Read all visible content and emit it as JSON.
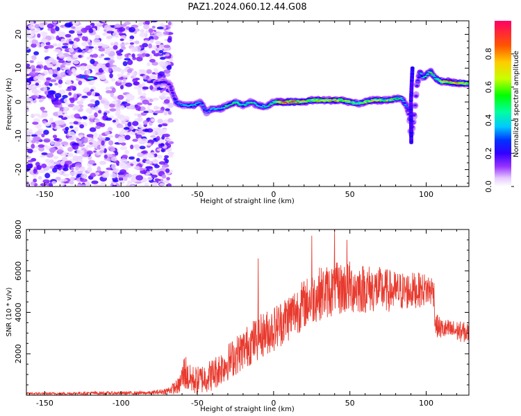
{
  "chart_data": [
    {
      "type": "heatmap",
      "title": "PAZ1.2024.060.12.44.G08",
      "xlabel": "Height of straight line (km)",
      "ylabel": "Frequency (Hz)",
      "xlim": [
        -162,
        128
      ],
      "ylim": [
        -25,
        24
      ],
      "x_ticks": [
        -150,
        -100,
        -50,
        0,
        50,
        100
      ],
      "y_ticks": [
        -20,
        -10,
        0,
        10,
        20
      ],
      "colorbar": {
        "label": "Normalized spectral amplitude",
        "range": [
          0,
          1
        ],
        "ticks": [
          "0.0",
          "0.2",
          "0.4",
          "0.6",
          "0.8"
        ],
        "colormap": [
          "#ffffff",
          "#e6ccff",
          "#9933ff",
          "#5500ff",
          "#0000ff",
          "#00c8ff",
          "#00ffa0",
          "#00ff00",
          "#c8ff00",
          "#ffcc00",
          "#ff5500",
          "#ff0066"
        ]
      },
      "ridge": {
        "x": [
          -77,
          -72,
          -68,
          -64,
          -60,
          -56,
          -52,
          -48,
          -44,
          -40,
          -35,
          -30,
          -25,
          -20,
          -15,
          -10,
          -5,
          0,
          5,
          10,
          15,
          20,
          25,
          30,
          35,
          40,
          45,
          50,
          55,
          60,
          65,
          70,
          75,
          80,
          84,
          87,
          89,
          90,
          92,
          94,
          96,
          98,
          100,
          103,
          106,
          110,
          115,
          120,
          125,
          128
        ],
        "freq": [
          5.5,
          6,
          5,
          0,
          -1,
          -1,
          -1,
          0,
          -3,
          -2,
          -2,
          -1,
          0,
          -1,
          0,
          -1,
          -1.5,
          0,
          0,
          0,
          0,
          0,
          0.5,
          0.5,
          0.5,
          0.5,
          0.5,
          0,
          -0.5,
          0,
          0.5,
          0.5,
          0.5,
          1,
          1,
          -1,
          -4,
          -10,
          -5,
          5,
          9,
          7,
          8,
          9,
          7,
          6,
          6,
          5.5,
          5.5,
          5.5
        ],
        "amplitude": [
          0.35,
          0.3,
          0.3,
          0.4,
          0.45,
          0.45,
          0.5,
          0.45,
          0.4,
          0.45,
          0.5,
          0.55,
          0.6,
          0.5,
          0.55,
          0.5,
          0.5,
          0.6,
          0.9,
          0.95,
          0.95,
          0.8,
          0.7,
          0.8,
          0.75,
          0.8,
          0.7,
          0.65,
          0.6,
          0.7,
          0.75,
          0.7,
          0.65,
          0.6,
          0.55,
          0.4,
          0.35,
          0.3,
          0.3,
          0.35,
          0.45,
          0.5,
          0.55,
          0.6,
          0.55,
          0.7,
          0.8,
          0.85,
          0.8,
          0.75
        ]
      },
      "noise_region": {
        "x": [
          -162,
          -67
        ],
        "amplitude": [
          0.05,
          0.35
        ]
      },
      "extra_blobs": [
        {
          "x": -120,
          "freq": 7,
          "amplitude": 0.55
        },
        {
          "x": -125,
          "freq": 7.5,
          "amplitude": 0.4
        }
      ]
    },
    {
      "type": "line",
      "xlabel": "Height of straight line (km)",
      "ylabel": "SNR (10 * v/v)",
      "xlim": [
        -162,
        128
      ],
      "ylim": [
        0,
        8000
      ],
      "x_ticks": [
        -150,
        -100,
        -50,
        0,
        50,
        100
      ],
      "y_ticks": [
        2000,
        4000,
        6000,
        8000
      ],
      "color": "#e83a2e",
      "envelope": {
        "x": [
          -162,
          -140,
          -120,
          -100,
          -80,
          -70,
          -62,
          -58,
          -56,
          -50,
          -40,
          -30,
          -20,
          -10,
          0,
          10,
          20,
          30,
          40,
          50,
          60,
          70,
          80,
          90,
          100,
          105,
          106,
          110,
          120,
          128
        ],
        "mean": [
          80,
          80,
          100,
          100,
          110,
          200,
          450,
          1200,
          800,
          700,
          1000,
          1600,
          2200,
          2800,
          3200,
          3800,
          4400,
          4900,
          5100,
          5200,
          5150,
          5100,
          5000,
          5050,
          5100,
          5050,
          3400,
          3200,
          3100,
          3000
        ],
        "spread": [
          60,
          60,
          80,
          80,
          90,
          150,
          400,
          1000,
          700,
          700,
          800,
          900,
          1000,
          1100,
          1100,
          1200,
          1200,
          1300,
          1300,
          1300,
          1200,
          1100,
          1000,
          900,
          800,
          800,
          600,
          500,
          500,
          500
        ]
      },
      "peaks": [
        {
          "x": -10,
          "y": 6600
        },
        {
          "x": 40,
          "y": 8000
        },
        {
          "x": 25,
          "y": 7700
        },
        {
          "x": 48,
          "y": 7500
        }
      ]
    }
  ]
}
